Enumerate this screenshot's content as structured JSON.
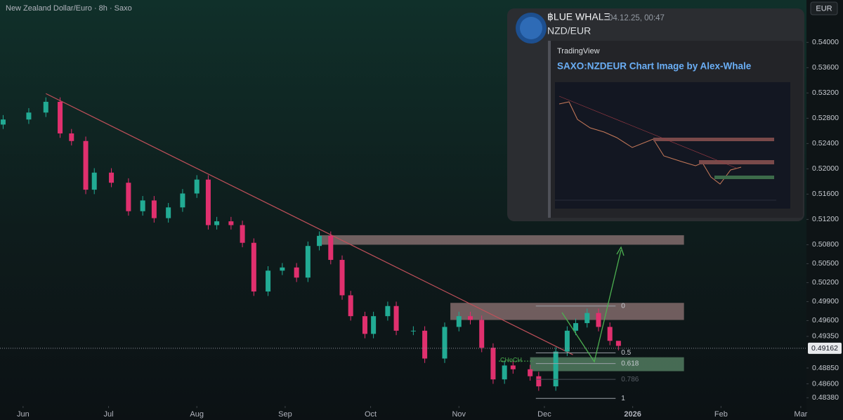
{
  "chart_data": {
    "type": "candlestick",
    "title": "New Zealand Dollar/Euro · 8h · Saxo",
    "currency": "EUR",
    "x": [
      -7,
      2,
      8,
      13,
      17,
      22,
      25,
      31,
      37,
      42,
      46,
      51,
      56,
      61,
      65,
      68,
      73,
      77,
      81,
      86,
      91,
      96,
      100,
      104,
      108,
      112,
      115,
      120,
      123,
      128,
      131,
      137,
      141,
      148,
      153,
      157,
      161,
      165,
      169,
      172,
      178,
      181,
      187,
      191,
      194,
      198,
      202,
      206,
      209
    ],
    "open": [
      0.527,
      0.5278,
      0.5289,
      0.5306,
      0.5256,
      0.5244,
      0.5167,
      0.5194,
      0.5178,
      0.5133,
      0.515,
      0.5122,
      0.5139,
      0.5161,
      0.5183,
      0.5111,
      0.5117,
      0.5111,
      0.5083,
      0.5006,
      0.5039,
      0.5044,
      0.5028,
      0.5078,
      0.5094,
      0.5056,
      0.5,
      0.4967,
      0.4939,
      0.4967,
      0.4983,
      0.4944,
      0.4944,
      0.49,
      0.495,
      0.4967,
      0.4961,
      0.4917,
      0.4867,
      0.4889,
      0.4883,
      0.4872,
      0.4856,
      0.4911,
      0.4944,
      0.4956,
      0.4972,
      0.495,
      0.4928
    ],
    "high": [
      0.5285,
      0.5296,
      0.5313,
      0.5313,
      0.5263,
      0.5251,
      0.5201,
      0.5201,
      0.5185,
      0.5157,
      0.5157,
      0.5146,
      0.5168,
      0.519,
      0.519,
      0.5124,
      0.5124,
      0.5118,
      0.509,
      0.5046,
      0.5051,
      0.5051,
      0.5085,
      0.5101,
      0.5101,
      0.5063,
      0.5007,
      0.4974,
      0.4974,
      0.499,
      0.499,
      0.4951,
      0.4951,
      0.4957,
      0.4974,
      0.4974,
      0.4968,
      0.4924,
      0.4896,
      0.4896,
      0.489,
      0.4879,
      0.4918,
      0.4951,
      0.4963,
      0.4979,
      0.4979,
      0.4957,
      0.4927
    ],
    "low": [
      0.5263,
      0.5271,
      0.5282,
      0.5249,
      0.5237,
      0.516,
      0.516,
      0.5171,
      0.5126,
      0.5126,
      0.5115,
      0.5115,
      0.5132,
      0.5154,
      0.5104,
      0.5104,
      0.5104,
      0.5076,
      0.4999,
      0.4999,
      0.5032,
      0.5021,
      0.5021,
      0.5071,
      0.5049,
      0.4993,
      0.496,
      0.4932,
      0.4932,
      0.496,
      0.4937,
      0.4937,
      0.4893,
      0.4893,
      0.4943,
      0.4954,
      0.491,
      0.486,
      0.486,
      0.4876,
      0.4865,
      0.4849,
      0.4849,
      0.4904,
      0.4937,
      0.4949,
      0.4943,
      0.4921,
      0.4913
    ],
    "close": [
      0.5278,
      0.5289,
      0.5306,
      0.5256,
      0.5244,
      0.5167,
      0.5194,
      0.5178,
      0.5133,
      0.515,
      0.5122,
      0.5139,
      0.5161,
      0.5183,
      0.5111,
      0.5117,
      0.5111,
      0.5083,
      0.5006,
      0.5039,
      0.5044,
      0.5028,
      0.5078,
      0.5094,
      0.5056,
      0.5,
      0.4967,
      0.4939,
      0.4967,
      0.4983,
      0.4944,
      0.4944,
      0.49,
      0.495,
      0.4967,
      0.4961,
      0.4917,
      0.4867,
      0.4889,
      0.4883,
      0.4872,
      0.4856,
      0.4911,
      0.4944,
      0.4956,
      0.4972,
      0.495,
      0.4928,
      0.492
    ],
    "up_color": "#22ab94",
    "down_color": "#e0306e",
    "xlim": [
      -8.1,
      275
    ],
    "ylim": [
      0.4825,
      0.5467
    ],
    "xticks": [
      {
        "value": 0,
        "label": "Jun"
      },
      {
        "value": 30,
        "label": "Jul"
      },
      {
        "value": 61,
        "label": "Aug"
      },
      {
        "value": 92,
        "label": "Sep"
      },
      {
        "value": 122,
        "label": "Oct"
      },
      {
        "value": 153,
        "label": "Nov"
      },
      {
        "value": 183,
        "label": "Dec"
      },
      {
        "value": 214,
        "label": "2026"
      },
      {
        "value": 245,
        "label": "Feb"
      },
      {
        "value": 273,
        "label": "Mar"
      }
    ],
    "yticks": [
      {
        "value": 0.54,
        "label": "0.54000"
      },
      {
        "value": 0.536,
        "label": "0.53600"
      },
      {
        "value": 0.532,
        "label": "0.53200"
      },
      {
        "value": 0.528,
        "label": "0.52800"
      },
      {
        "value": 0.524,
        "label": "0.52400"
      },
      {
        "value": 0.52,
        "label": "0.52000"
      },
      {
        "value": 0.516,
        "label": "0.51600"
      },
      {
        "value": 0.512,
        "label": "0.51200"
      },
      {
        "value": 0.508,
        "label": "0.50800"
      },
      {
        "value": 0.505,
        "label": "0.50500"
      },
      {
        "value": 0.502,
        "label": "0.50200"
      },
      {
        "value": 0.499,
        "label": "0.49900"
      },
      {
        "value": 0.496,
        "label": "0.49600"
      },
      {
        "value": 0.4935,
        "label": "0.49350"
      },
      {
        "value": 0.4885,
        "label": "0.48850"
      },
      {
        "value": 0.486,
        "label": "0.48600"
      },
      {
        "value": 0.4838,
        "label": "0.48380"
      }
    ],
    "grid": false,
    "last_price": 0.49162,
    "trendline": {
      "x": [
        8,
        193
      ],
      "y": [
        0.5319,
        0.4906
      ],
      "color": "#c0505a"
    },
    "zones": [
      {
        "x": [
          104,
          232
        ],
        "y": [
          0.508,
          0.5095
        ],
        "color": "#e8b4b4"
      },
      {
        "x": [
          150,
          232
        ],
        "y": [
          0.4961,
          0.4988
        ],
        "color": "#e8b4b4"
      },
      {
        "x": [
          178,
          232
        ],
        "y": [
          0.488,
          0.4902
        ],
        "color": "#8fd4a0"
      }
    ],
    "fib": {
      "x": [
        180,
        208
      ],
      "levels": [
        0,
        0.5,
        0.618,
        0.786,
        1
      ],
      "prices": [
        0.4983,
        0.4909,
        0.4892,
        0.4867,
        0.4837
      ]
    },
    "choch": {
      "label": "CHoCH",
      "x": [
        167,
        179
      ],
      "y": 0.4896
    }
  },
  "overlay": {
    "author": "฿LUE WHALΞ",
    "timestamp": "04.12.25, 00:47",
    "message": "NZD/EUR",
    "embed_provider": "TradingView",
    "embed_title": "SAXO:NZDEUR Chart Image by Alex-Whale"
  }
}
